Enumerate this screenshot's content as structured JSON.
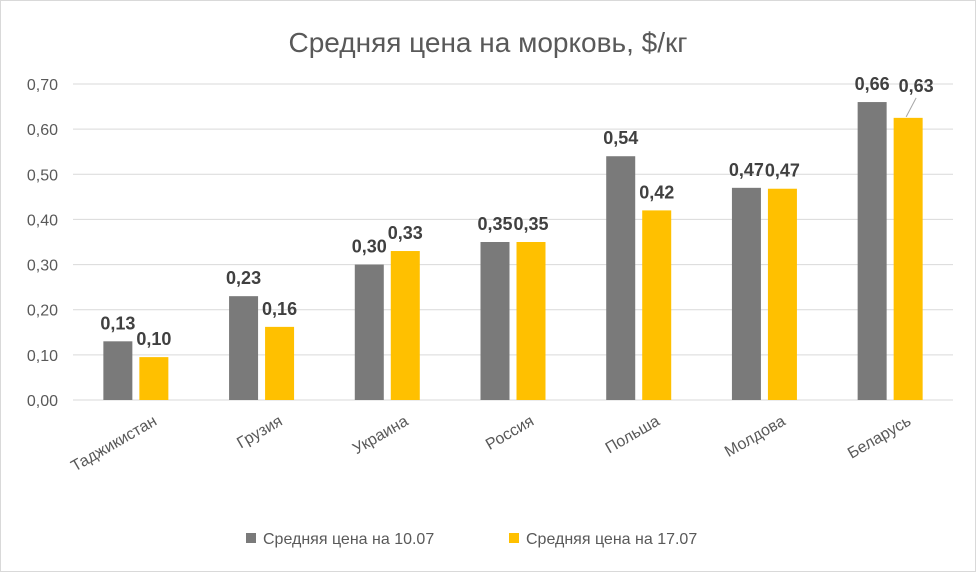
{
  "chart_data": {
    "type": "bar",
    "title": "Средняя цена на морковь, $/кг",
    "categories": [
      "Таджикистан",
      "Грузия",
      "Украина",
      "Россия",
      "Польша",
      "Молдова",
      "Беларусь"
    ],
    "series": [
      {
        "name": "Средняя цена на 10.07",
        "color": "#7a7a7a",
        "values": [
          0.13,
          0.23,
          0.3,
          0.35,
          0.54,
          0.47,
          0.66
        ],
        "labels": [
          "0,13",
          "0,23",
          "0,30",
          "0,35",
          "0,54",
          "0,47",
          "0,66"
        ]
      },
      {
        "name": "Средняя цена на 17.07",
        "color": "#ffc000",
        "values": [
          0.095,
          0.162,
          0.33,
          0.35,
          0.42,
          0.468,
          0.625
        ],
        "labels": [
          "0,10",
          "0,16",
          "0,33",
          "0,35",
          "0,42",
          "0,47",
          "0,63"
        ]
      }
    ],
    "ylim": [
      0,
      0.7
    ],
    "yticks": [
      "0,00",
      "0,10",
      "0,20",
      "0,30",
      "0,40",
      "0,50",
      "0,60",
      "0,70"
    ],
    "grid": true,
    "legend": "bottom"
  }
}
